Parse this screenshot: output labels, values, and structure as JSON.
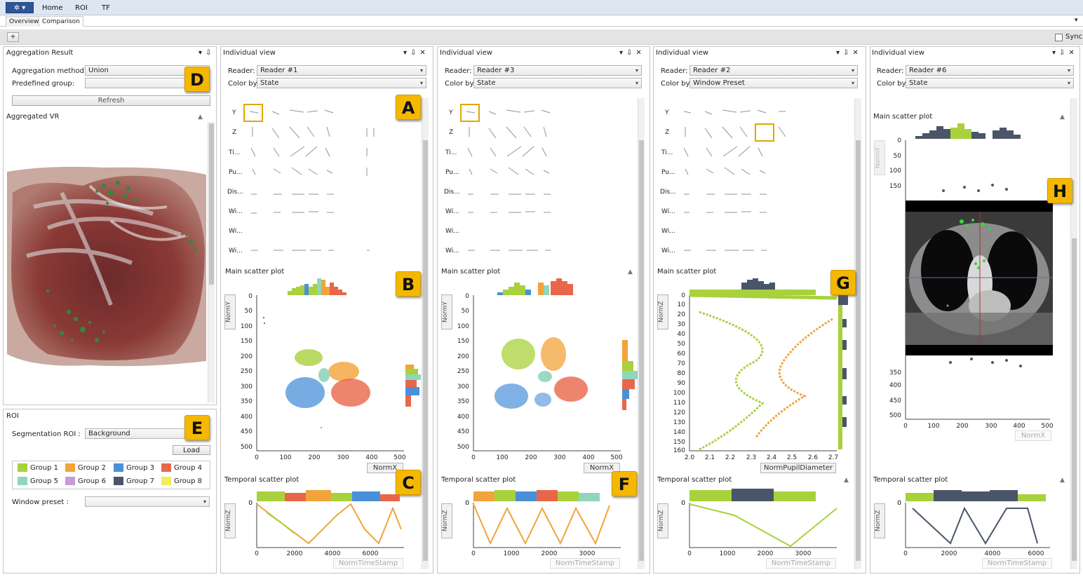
{
  "app": {
    "logo_label": "✲ ▾",
    "menu": [
      "Home",
      "ROI",
      "TF"
    ],
    "overflow_icon": "▾"
  },
  "tabs": [
    "Overview",
    "Comparison"
  ],
  "toolbar": {
    "add_label": "+",
    "sync_label": "Sync",
    "sync_checked": false
  },
  "left": {
    "aggregation": {
      "title": "Aggregation Result",
      "method_label": "Aggregation method:",
      "method_value": "Union",
      "group_label": "Predefined group:",
      "group_value": "",
      "refresh_label": "Refresh",
      "vr_title": "Aggregated VR"
    },
    "roi": {
      "title": "ROI",
      "seg_label": "Segmentation ROI :",
      "seg_value": "Background",
      "load_label": "Load",
      "window_label": "Window preset :",
      "window_value": ""
    },
    "groups": [
      {
        "label": "Group 1",
        "color": "#a8d13c"
      },
      {
        "label": "Group 2",
        "color": "#f2a33a"
      },
      {
        "label": "Group 3",
        "color": "#4a90d9"
      },
      {
        "label": "Group 4",
        "color": "#e8674a"
      },
      {
        "label": "Group 5",
        "color": "#8fd6bd"
      },
      {
        "label": "Group 6",
        "color": "#c89ad9"
      },
      {
        "label": "Group 7",
        "color": "#4a5568"
      },
      {
        "label": "Group 8",
        "color": "#f4ec5a"
      }
    ]
  },
  "views": [
    {
      "title": "Individual view",
      "reader_label": "Reader:",
      "reader": "Reader #1",
      "color_label": "Color by:",
      "color_by": "State",
      "matrix_rows": [
        "Y",
        "Z",
        "Ti...",
        "Pu...",
        "Dis...",
        "Wi...",
        "Wi...",
        "Wi..."
      ],
      "main_title": "Main scatter plot",
      "y_axis": "NormY",
      "x_axis": "NormX",
      "y_ticks": [
        "0",
        "50",
        "100",
        "150",
        "200",
        "250",
        "300",
        "350",
        "400",
        "450",
        "500"
      ],
      "x_ticks": [
        "0",
        "100",
        "200",
        "300",
        "400",
        "500"
      ],
      "temporal_title": "Temporal scatter plot",
      "t_y_axis": "NormZ",
      "t_y_tick": "0",
      "t_x_ticks": [
        "0",
        "2000",
        "4000",
        "6000"
      ],
      "t_x_axis": "NormTimeStamp"
    },
    {
      "title": "Individual view",
      "reader_label": "Reader:",
      "reader": "Reader #3",
      "color_label": "Color by:",
      "color_by": "State",
      "matrix_rows": [
        "Y",
        "Z",
        "Ti...",
        "Pu...",
        "Dis...",
        "Wi...",
        "Wi...",
        "Wi..."
      ],
      "main_title": "Main scatter plot",
      "y_axis": "NormY",
      "x_axis": "NormX",
      "y_ticks": [
        "0",
        "50",
        "100",
        "150",
        "200",
        "250",
        "300",
        "350",
        "400",
        "450",
        "500"
      ],
      "x_ticks": [
        "0",
        "100",
        "200",
        "300",
        "400",
        "500"
      ],
      "temporal_title": "Temporal scatter plot",
      "t_y_axis": "NormZ",
      "t_y_tick": "0",
      "t_x_ticks": [
        "0",
        "1000",
        "2000",
        "3000"
      ],
      "t_x_axis": "NormTimeStamp"
    },
    {
      "title": "Individual view",
      "reader_label": "Reader:",
      "reader": "Reader #2",
      "color_label": "Color by:",
      "color_by": "Window Preset",
      "matrix_rows": [
        "Y",
        "Z",
        "Ti...",
        "Pu...",
        "Dis...",
        "Wi...",
        "Wi...",
        "Wi..."
      ],
      "main_title": "Main scatter plot",
      "y_axis": "NormZ",
      "x_axis": "NormPupilDiameter",
      "y_ticks": [
        "0",
        "10",
        "20",
        "30",
        "40",
        "50",
        "60",
        "70",
        "80",
        "90",
        "100",
        "110",
        "120",
        "130",
        "140",
        "150",
        "160"
      ],
      "x_ticks": [
        "2.0",
        "2.1",
        "2.2",
        "2.3",
        "2.4",
        "2.5",
        "2.6",
        "2.7"
      ],
      "temporal_title": "Temporal scatter plot",
      "t_y_axis": "NormZ",
      "t_y_tick": "0",
      "t_x_ticks": [
        "0",
        "1000",
        "2000",
        "3000"
      ],
      "t_x_axis": "NormTimeStamp"
    },
    {
      "title": "Individual view",
      "reader_label": "Reader:",
      "reader": "Reader #6",
      "color_label": "Color by:",
      "color_by": "State",
      "matrix_rows": [],
      "main_title": "Main scatter plot",
      "y_axis": "NormY",
      "x_axis": "NormX",
      "y_ticks": [
        "0",
        "50",
        "100",
        "150",
        "350",
        "400",
        "450",
        "500"
      ],
      "x_ticks": [
        "0",
        "100",
        "200",
        "300",
        "400",
        "500"
      ],
      "temporal_title": "Temporal scatter plot",
      "t_y_axis": "NormZ",
      "t_y_tick": "0",
      "t_x_ticks": [
        "0",
        "2000",
        "4000",
        "6000"
      ],
      "t_x_axis": "NormTimeStamp"
    }
  ],
  "badges": [
    "A",
    "B",
    "C",
    "D",
    "E",
    "F",
    "G",
    "H"
  ],
  "icons": {
    "dropdown": "▾",
    "pin": "⇩",
    "close": "✕",
    "collapse": "▲"
  }
}
